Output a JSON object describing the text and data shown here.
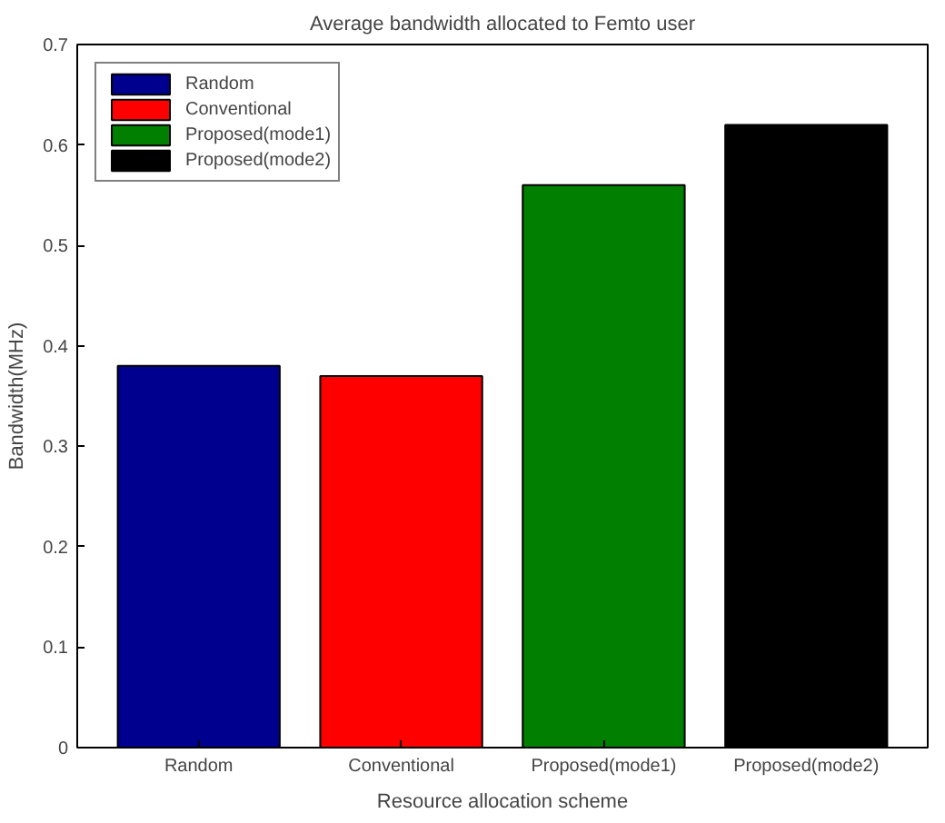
{
  "chart_data": {
    "type": "bar",
    "title": "Average bandwidth allocated to Femto user",
    "xlabel": "Resource allocation scheme",
    "ylabel": "Bandwidth(MHz)",
    "categories": [
      "Random",
      "Conventional",
      "Proposed(mode1)",
      "Proposed(mode2)"
    ],
    "series": [
      {
        "name": "Random",
        "color": "#00008f",
        "values": [
          0.38,
          null,
          null,
          null
        ]
      },
      {
        "name": "Conventional",
        "color": "#ff0000",
        "values": [
          null,
          0.37,
          null,
          null
        ]
      },
      {
        "name": "Proposed(mode1)",
        "color": "#007f00",
        "values": [
          null,
          null,
          0.56,
          null
        ]
      },
      {
        "name": "Proposed(mode2)",
        "color": "#000000",
        "values": [
          null,
          null,
          null,
          0.62
        ]
      }
    ],
    "ylim": [
      0,
      0.7
    ],
    "yticks": [
      0,
      0.1,
      0.2,
      0.3,
      0.4,
      0.5,
      0.6,
      0.7
    ],
    "legend": "top left"
  }
}
